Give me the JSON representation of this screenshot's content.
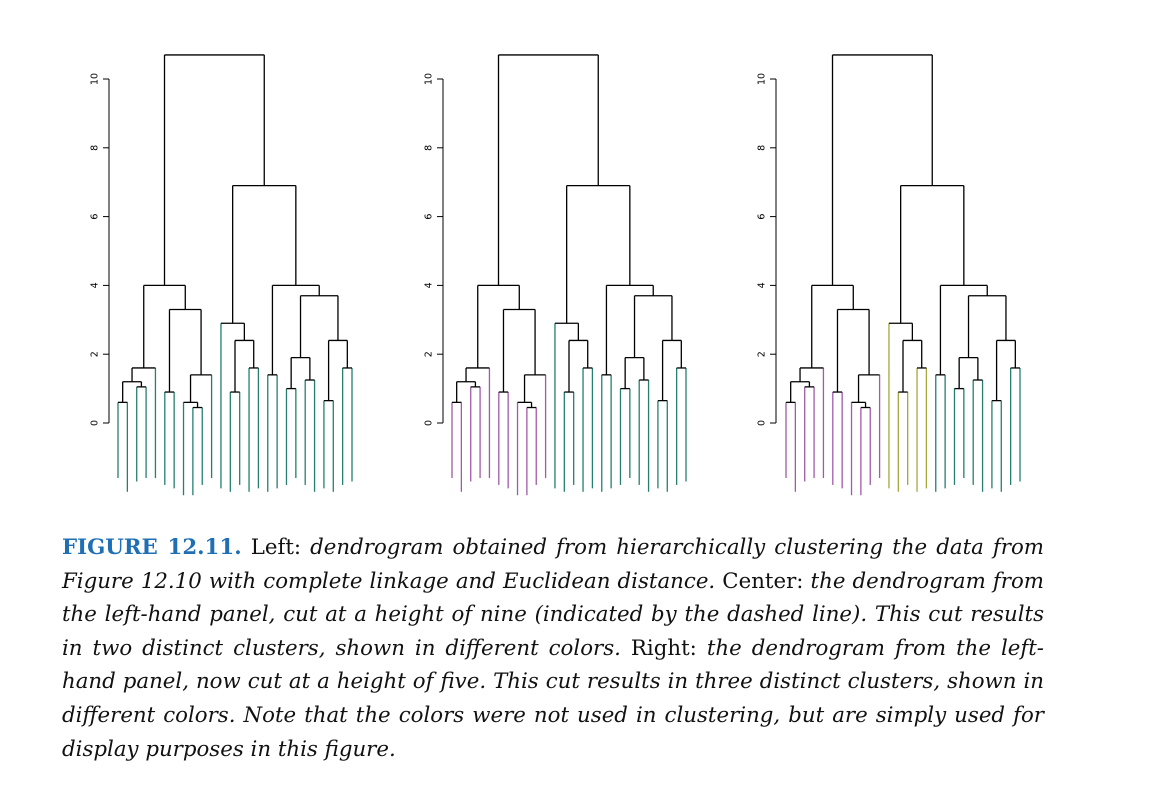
{
  "chart_data": [
    {
      "type": "dendrogram",
      "panel": "left",
      "y_ticks": [
        0,
        2,
        4,
        6,
        8,
        10
      ],
      "ylim": [
        -4.2,
        11
      ],
      "cut_height": null,
      "colors_by_cluster": [
        "#267f6e"
      ],
      "merge_heights_top": [
        10.7,
        6.9,
        4.0,
        4.0,
        3.7,
        2.9
      ]
    },
    {
      "type": "dendrogram",
      "panel": "center",
      "y_ticks": [
        0,
        2,
        4,
        6,
        8,
        10
      ],
      "ylim": [
        -4.2,
        11
      ],
      "cut_height": 9,
      "clusters": 2,
      "colors_by_cluster": [
        "#a05aa8",
        "#267f6e"
      ],
      "merge_heights_top": [
        10.7,
        6.9,
        4.0,
        4.0,
        3.7,
        2.9
      ]
    },
    {
      "type": "dendrogram",
      "panel": "right",
      "y_ticks": [
        0,
        2,
        4,
        6,
        8,
        10
      ],
      "ylim": [
        -4.2,
        11
      ],
      "cut_height": 5,
      "clusters": 3,
      "colors_by_cluster": [
        "#a05aa8",
        "#a3a83e",
        "#267f6e"
      ],
      "merge_heights_top": [
        10.7,
        6.9,
        4.0,
        4.0,
        3.7,
        2.9
      ]
    }
  ],
  "caption": {
    "label": "FIGURE 12.11.",
    "p1": " Left: ",
    "i1": "dendrogram obtained from hierarchically clustering the data from Figure 12.10 with complete linkage and Euclidean distance.",
    "p2": " Center: ",
    "i2": "the dendrogram from the left-hand panel, cut at a height of nine (indicated by the dashed line). This cut results in two distinct clusters, shown in different colors.",
    "p3": " Right: ",
    "i3": "the dendrogram from the left-hand panel, now cut at a height of five. This cut results in three distinct clusters, shown in different colors. Note that the colors were not used in clustering, but are simply used for display purposes in this figure."
  }
}
